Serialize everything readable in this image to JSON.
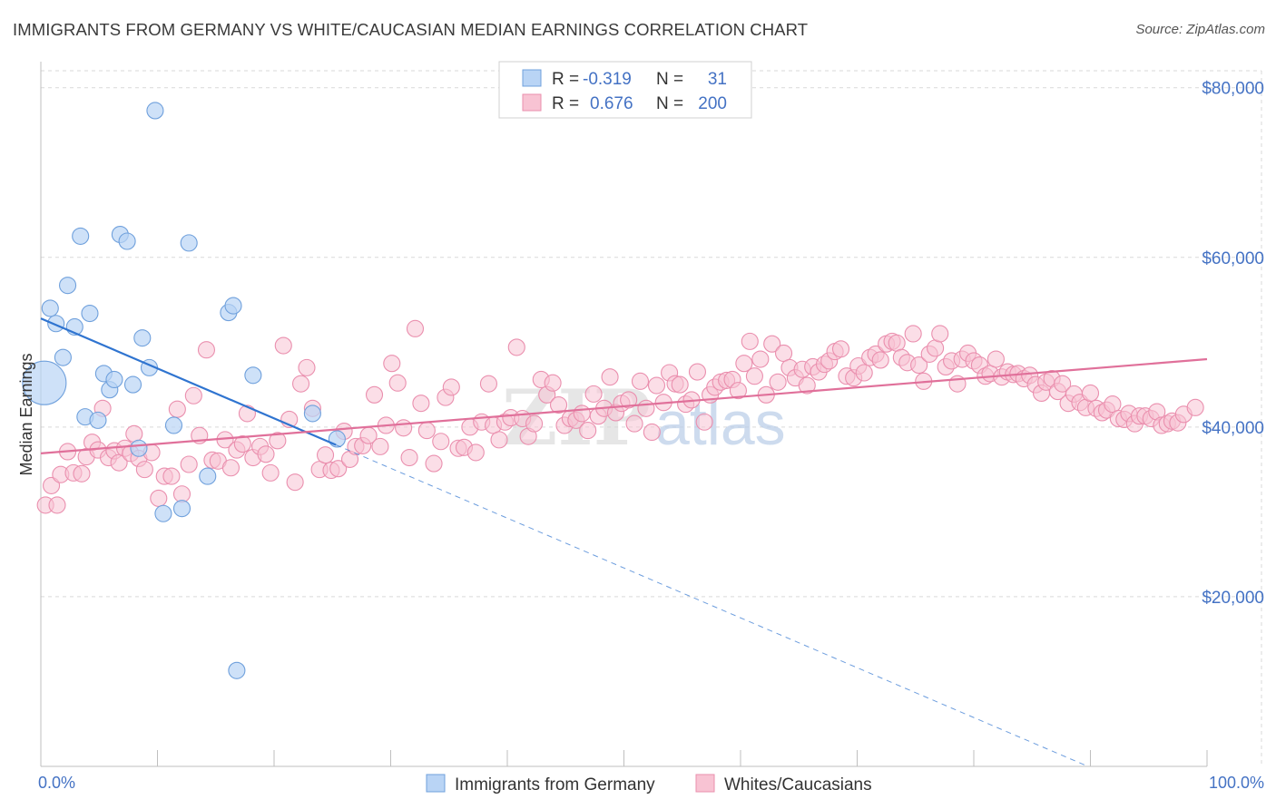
{
  "title": "IMMIGRANTS FROM GERMANY VS WHITE/CAUCASIAN MEDIAN EARNINGS CORRELATION CHART",
  "source": "Source: ZipAtlas.com",
  "watermark": {
    "zip": "ZIP",
    "atlas": "atlas"
  },
  "colors": {
    "blue_fill": "#b9d4f5",
    "blue_stroke": "#6fa0dc",
    "blue_line": "#2f74d0",
    "pink_fill": "#f8c3d3",
    "pink_stroke": "#ea8fae",
    "pink_line": "#e0709a",
    "axis_label": "#4472c4",
    "grid": "#d9d9d9"
  },
  "legend": {
    "rows": [
      {
        "r_label": "R =",
        "r_value": "-0.319",
        "n_label": "N =",
        "n_value": "31",
        "series": "blue"
      },
      {
        "r_label": "R =",
        "r_value": "0.676",
        "n_label": "N =",
        "n_value": "200",
        "series": "pink"
      }
    ]
  },
  "bottom_legend": [
    "Immigrants from Germany",
    "Whites/Caucasians"
  ],
  "chart_data": {
    "type": "scatter",
    "title": "IMMIGRANTS FROM GERMANY VS WHITE/CAUCASIAN MEDIAN EARNINGS CORRELATION CHART",
    "xlabel": "",
    "ylabel": "Median Earnings",
    "xlim": [
      0,
      100
    ],
    "ylim": [
      0,
      82000
    ],
    "x_tick_labels": [
      "0.0%",
      "100.0%"
    ],
    "y_ticks": [
      20000,
      40000,
      60000,
      80000
    ],
    "y_tick_labels": [
      "$20,000",
      "$40,000",
      "$60,000",
      "$80,000"
    ],
    "grid": true,
    "legend_position": "top-center",
    "series": [
      {
        "name": "Immigrants from Germany",
        "color": "#b9d4f5",
        "r": -0.319,
        "n": 31,
        "trend": {
          "x": [
            0,
            25.3
          ],
          "y": [
            52800,
            37900
          ]
        },
        "trend_extension": {
          "x": [
            25.3,
            100
          ],
          "y": [
            37900,
            -6000
          ]
        },
        "points": [
          [
            0.3,
            45200
          ],
          [
            0.8,
            54000
          ],
          [
            1.3,
            52200
          ],
          [
            1.9,
            48200
          ],
          [
            2.3,
            56700
          ],
          [
            2.9,
            51800
          ],
          [
            3.4,
            62500
          ],
          [
            3.8,
            41200
          ],
          [
            4.2,
            53400
          ],
          [
            4.9,
            40800
          ],
          [
            5.4,
            46300
          ],
          [
            5.9,
            44400
          ],
          [
            6.3,
            45600
          ],
          [
            6.8,
            62700
          ],
          [
            7.4,
            61900
          ],
          [
            7.9,
            45000
          ],
          [
            8.4,
            37500
          ],
          [
            8.7,
            50500
          ],
          [
            9.3,
            47000
          ],
          [
            9.8,
            77300
          ],
          [
            10.5,
            29800
          ],
          [
            11.4,
            40200
          ],
          [
            12.1,
            30400
          ],
          [
            12.7,
            61700
          ],
          [
            14.3,
            34200
          ],
          [
            16.1,
            53500
          ],
          [
            16.5,
            54300
          ],
          [
            16.8,
            11300
          ],
          [
            18.2,
            46100
          ],
          [
            23.3,
            41600
          ],
          [
            25.4,
            38600
          ]
        ]
      },
      {
        "name": "Whites/Caucasians",
        "color": "#f8c3d3",
        "r": 0.676,
        "n": 200,
        "trend": {
          "x": [
            0,
            100
          ],
          "y": [
            36900,
            48000
          ]
        },
        "points": [
          [
            0.4,
            30800
          ],
          [
            0.9,
            33100
          ],
          [
            1.4,
            30800
          ],
          [
            1.7,
            34400
          ],
          [
            2.3,
            37100
          ],
          [
            2.8,
            34600
          ],
          [
            3.5,
            34500
          ],
          [
            3.9,
            36500
          ],
          [
            4.4,
            38200
          ],
          [
            4.9,
            37300
          ],
          [
            5.3,
            42200
          ],
          [
            5.8,
            36400
          ],
          [
            6.3,
            37200
          ],
          [
            6.7,
            35800
          ],
          [
            7.2,
            37500
          ],
          [
            7.7,
            36900
          ],
          [
            8.0,
            39200
          ],
          [
            8.4,
            36300
          ],
          [
            8.9,
            35000
          ],
          [
            9.5,
            37000
          ],
          [
            10.1,
            31600
          ],
          [
            10.6,
            34200
          ],
          [
            11.2,
            34200
          ],
          [
            11.7,
            42100
          ],
          [
            12.1,
            32100
          ],
          [
            12.7,
            35600
          ],
          [
            13.1,
            43700
          ],
          [
            13.6,
            39000
          ],
          [
            14.2,
            49100
          ],
          [
            14.7,
            36100
          ],
          [
            15.2,
            36000
          ],
          [
            15.8,
            38500
          ],
          [
            16.3,
            35200
          ],
          [
            16.8,
            37300
          ],
          [
            17.3,
            38000
          ],
          [
            17.7,
            41600
          ],
          [
            18.2,
            36400
          ],
          [
            18.8,
            37700
          ],
          [
            19.3,
            36800
          ],
          [
            19.7,
            34600
          ],
          [
            20.3,
            38400
          ],
          [
            20.8,
            49600
          ],
          [
            21.3,
            40900
          ],
          [
            21.8,
            33500
          ],
          [
            22.3,
            45100
          ],
          [
            22.8,
            47000
          ],
          [
            23.3,
            42200
          ],
          [
            23.9,
            35000
          ],
          [
            24.4,
            36700
          ],
          [
            24.9,
            34900
          ],
          [
            25.5,
            35100
          ],
          [
            26.0,
            39500
          ],
          [
            26.5,
            36200
          ],
          [
            27.0,
            37700
          ],
          [
            27.6,
            37800
          ],
          [
            28.1,
            39000
          ],
          [
            28.6,
            43800
          ],
          [
            29.1,
            37700
          ],
          [
            29.6,
            40200
          ],
          [
            30.1,
            47500
          ],
          [
            30.6,
            45200
          ],
          [
            31.1,
            39900
          ],
          [
            31.6,
            36400
          ],
          [
            32.1,
            51600
          ],
          [
            32.6,
            42800
          ],
          [
            33.1,
            39600
          ],
          [
            33.7,
            35700
          ],
          [
            34.3,
            38300
          ],
          [
            34.7,
            43500
          ],
          [
            35.2,
            44700
          ],
          [
            35.8,
            37500
          ],
          [
            36.3,
            37600
          ],
          [
            36.8,
            40000
          ],
          [
            37.3,
            37000
          ],
          [
            37.8,
            40600
          ],
          [
            38.4,
            45100
          ],
          [
            38.8,
            40200
          ],
          [
            39.3,
            38500
          ],
          [
            39.8,
            40600
          ],
          [
            40.3,
            41100
          ],
          [
            40.8,
            49400
          ],
          [
            41.3,
            41000
          ],
          [
            41.8,
            38900
          ],
          [
            42.3,
            40400
          ],
          [
            42.9,
            45600
          ],
          [
            43.4,
            43800
          ],
          [
            43.9,
            45200
          ],
          [
            44.4,
            42600
          ],
          [
            44.9,
            40200
          ],
          [
            45.4,
            41000
          ],
          [
            45.9,
            40800
          ],
          [
            46.4,
            41600
          ],
          [
            46.9,
            39600
          ],
          [
            47.4,
            43900
          ],
          [
            47.8,
            41300
          ],
          [
            48.3,
            42200
          ],
          [
            48.8,
            45900
          ],
          [
            49.3,
            41700
          ],
          [
            49.8,
            42800
          ],
          [
            50.4,
            43200
          ],
          [
            50.9,
            40400
          ],
          [
            51.4,
            45400
          ],
          [
            51.9,
            42200
          ],
          [
            52.4,
            39400
          ],
          [
            52.8,
            44900
          ],
          [
            53.4,
            42900
          ],
          [
            53.9,
            46400
          ],
          [
            54.4,
            45100
          ],
          [
            54.8,
            45000
          ],
          [
            55.3,
            42700
          ],
          [
            55.8,
            43200
          ],
          [
            56.3,
            46500
          ],
          [
            56.9,
            40600
          ],
          [
            57.4,
            43800
          ],
          [
            57.8,
            44700
          ],
          [
            58.3,
            45300
          ],
          [
            58.8,
            45500
          ],
          [
            59.3,
            45600
          ],
          [
            59.8,
            44300
          ],
          [
            60.3,
            47500
          ],
          [
            60.8,
            50100
          ],
          [
            61.2,
            46000
          ],
          [
            61.7,
            48000
          ],
          [
            62.2,
            43800
          ],
          [
            62.7,
            49800
          ],
          [
            63.2,
            45300
          ],
          [
            63.7,
            48700
          ],
          [
            64.2,
            47000
          ],
          [
            64.7,
            45800
          ],
          [
            65.3,
            46800
          ],
          [
            65.7,
            44900
          ],
          [
            66.2,
            47100
          ],
          [
            66.7,
            46500
          ],
          [
            67.2,
            47400
          ],
          [
            67.6,
            47800
          ],
          [
            68.1,
            48900
          ],
          [
            68.6,
            49200
          ],
          [
            69.1,
            46000
          ],
          [
            69.7,
            45800
          ],
          [
            70.1,
            47200
          ],
          [
            70.6,
            46400
          ],
          [
            71.1,
            48200
          ],
          [
            71.6,
            48600
          ],
          [
            72.0,
            47900
          ],
          [
            72.5,
            49800
          ],
          [
            73.0,
            50100
          ],
          [
            73.4,
            49900
          ],
          [
            73.8,
            48200
          ],
          [
            74.3,
            47600
          ],
          [
            74.8,
            51000
          ],
          [
            75.3,
            47300
          ],
          [
            75.7,
            45400
          ],
          [
            76.2,
            48600
          ],
          [
            76.7,
            49300
          ],
          [
            77.1,
            51000
          ],
          [
            77.6,
            47100
          ],
          [
            78.1,
            47800
          ],
          [
            78.6,
            45100
          ],
          [
            79.0,
            48000
          ],
          [
            79.5,
            48700
          ],
          [
            80.0,
            47800
          ],
          [
            80.5,
            47300
          ],
          [
            81.0,
            46000
          ],
          [
            81.4,
            46300
          ],
          [
            81.9,
            48000
          ],
          [
            82.4,
            45900
          ],
          [
            82.9,
            46500
          ],
          [
            83.4,
            46200
          ],
          [
            83.8,
            46300
          ],
          [
            84.3,
            45700
          ],
          [
            84.8,
            46100
          ],
          [
            85.3,
            45000
          ],
          [
            85.8,
            44000
          ],
          [
            86.2,
            45300
          ],
          [
            86.7,
            45700
          ],
          [
            87.2,
            44200
          ],
          [
            87.6,
            45100
          ],
          [
            88.1,
            42800
          ],
          [
            88.6,
            43900
          ],
          [
            89.1,
            42900
          ],
          [
            89.6,
            42300
          ],
          [
            90.0,
            44000
          ],
          [
            90.5,
            42200
          ],
          [
            91.0,
            41700
          ],
          [
            91.4,
            42000
          ],
          [
            91.9,
            42700
          ],
          [
            92.4,
            41000
          ],
          [
            92.9,
            40900
          ],
          [
            93.3,
            41600
          ],
          [
            93.8,
            40400
          ],
          [
            94.2,
            41300
          ],
          [
            94.7,
            41300
          ],
          [
            95.2,
            41000
          ],
          [
            95.7,
            41800
          ],
          [
            96.1,
            40200
          ],
          [
            96.6,
            40400
          ],
          [
            97.0,
            40700
          ],
          [
            97.5,
            40500
          ],
          [
            98.0,
            41500
          ],
          [
            99.0,
            42300
          ]
        ]
      }
    ]
  }
}
